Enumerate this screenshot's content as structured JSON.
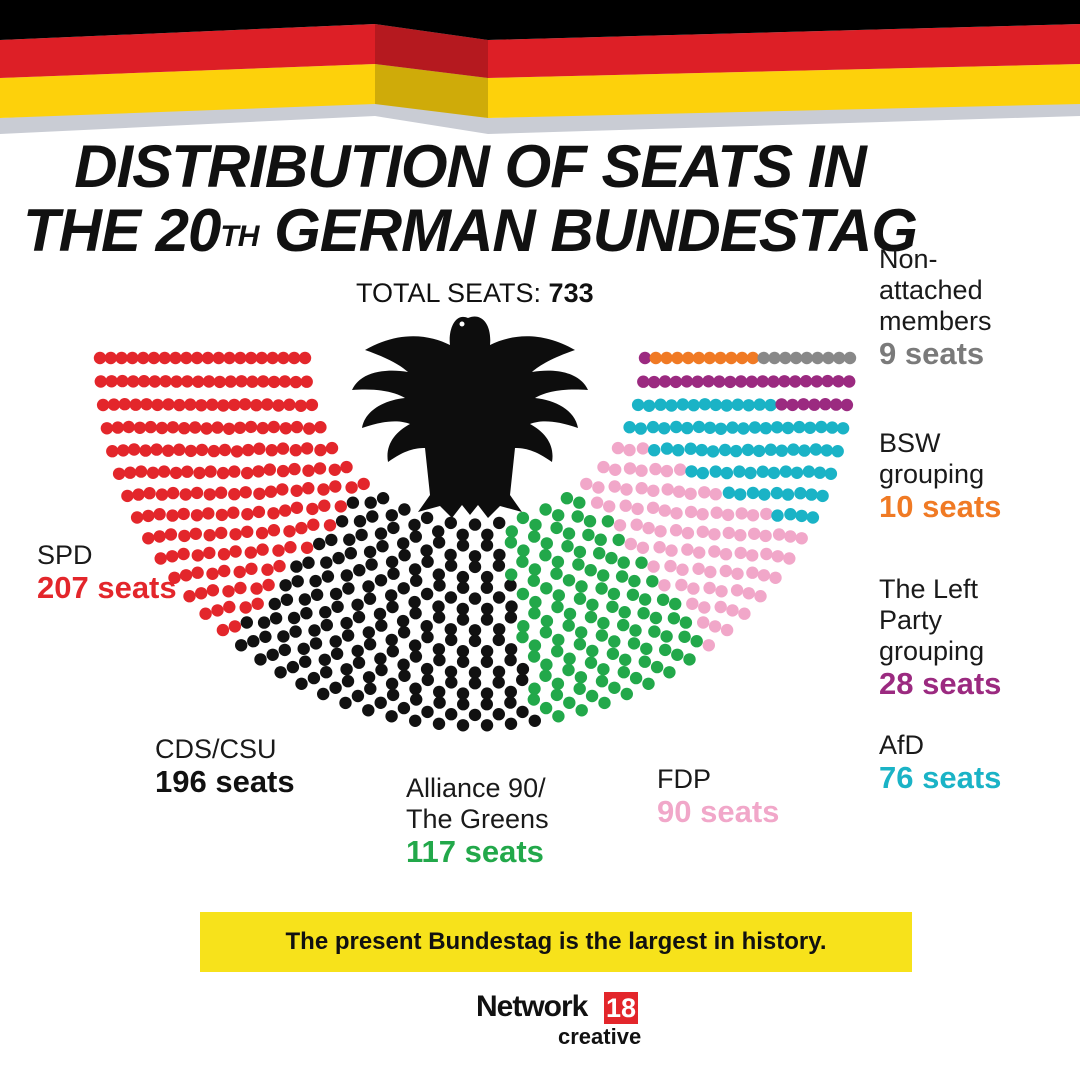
{
  "header": {
    "title_line1": "DISTRIBUTION OF SEATS IN",
    "title_line2_pre": "THE 20",
    "title_line2_sup": "TH",
    "title_line2_post": " GERMAN BUNDESTAG",
    "total_label": "TOTAL SEATS: ",
    "total_value": "733"
  },
  "chart_data": {
    "type": "parliament",
    "total": 733,
    "series": [
      {
        "name": "SPD",
        "value_label": "207 seats",
        "value": 207,
        "color": "#e3262b"
      },
      {
        "name": "CDS/CSU",
        "value_label": "196 seats",
        "value": 196,
        "color": "#111111"
      },
      {
        "name": "Alliance 90/ The Greens",
        "value_label": "117 seats",
        "value": 117,
        "color": "#22a84a"
      },
      {
        "name": "FDP",
        "value_label": "90 seats",
        "value": 90,
        "color": "#f1a7c9"
      },
      {
        "name": "AfD",
        "value_label": "76 seats",
        "value": 76,
        "color": "#1ab3c6"
      },
      {
        "name": "The Left Party grouping",
        "value_label": "28 seats",
        "value": 28,
        "color": "#9b2a80"
      },
      {
        "name": "BSW grouping",
        "value_label": "10 seats",
        "value": 10,
        "color": "#f07a24"
      },
      {
        "name": "Non- attached members",
        "value_label": "9 seats",
        "value": 9,
        "color": "#888888"
      }
    ]
  },
  "labels": {
    "spd_name": "SPD",
    "cdu_name": "CDS/CSU",
    "greens_line1": "Alliance 90/",
    "greens_line2": "The Greens",
    "fdp_name": "FDP",
    "afd_name": "AfD",
    "left_line1": "The Left",
    "left_line2": "Party",
    "left_line3": "grouping",
    "bsw_line1": "BSW",
    "bsw_line2": "grouping",
    "non_line1": "Non-",
    "non_line2": "attached",
    "non_line3": "members"
  },
  "banner": "The present Bundestag is the largest in history.",
  "brand": {
    "network": "Network",
    "number": "18",
    "creative": "creative"
  },
  "colors": {
    "flag_black": "#000000",
    "flag_red": "#dd1f26",
    "flag_gold": "#fdd10b",
    "flag_shadow": "#b8bcc6"
  }
}
